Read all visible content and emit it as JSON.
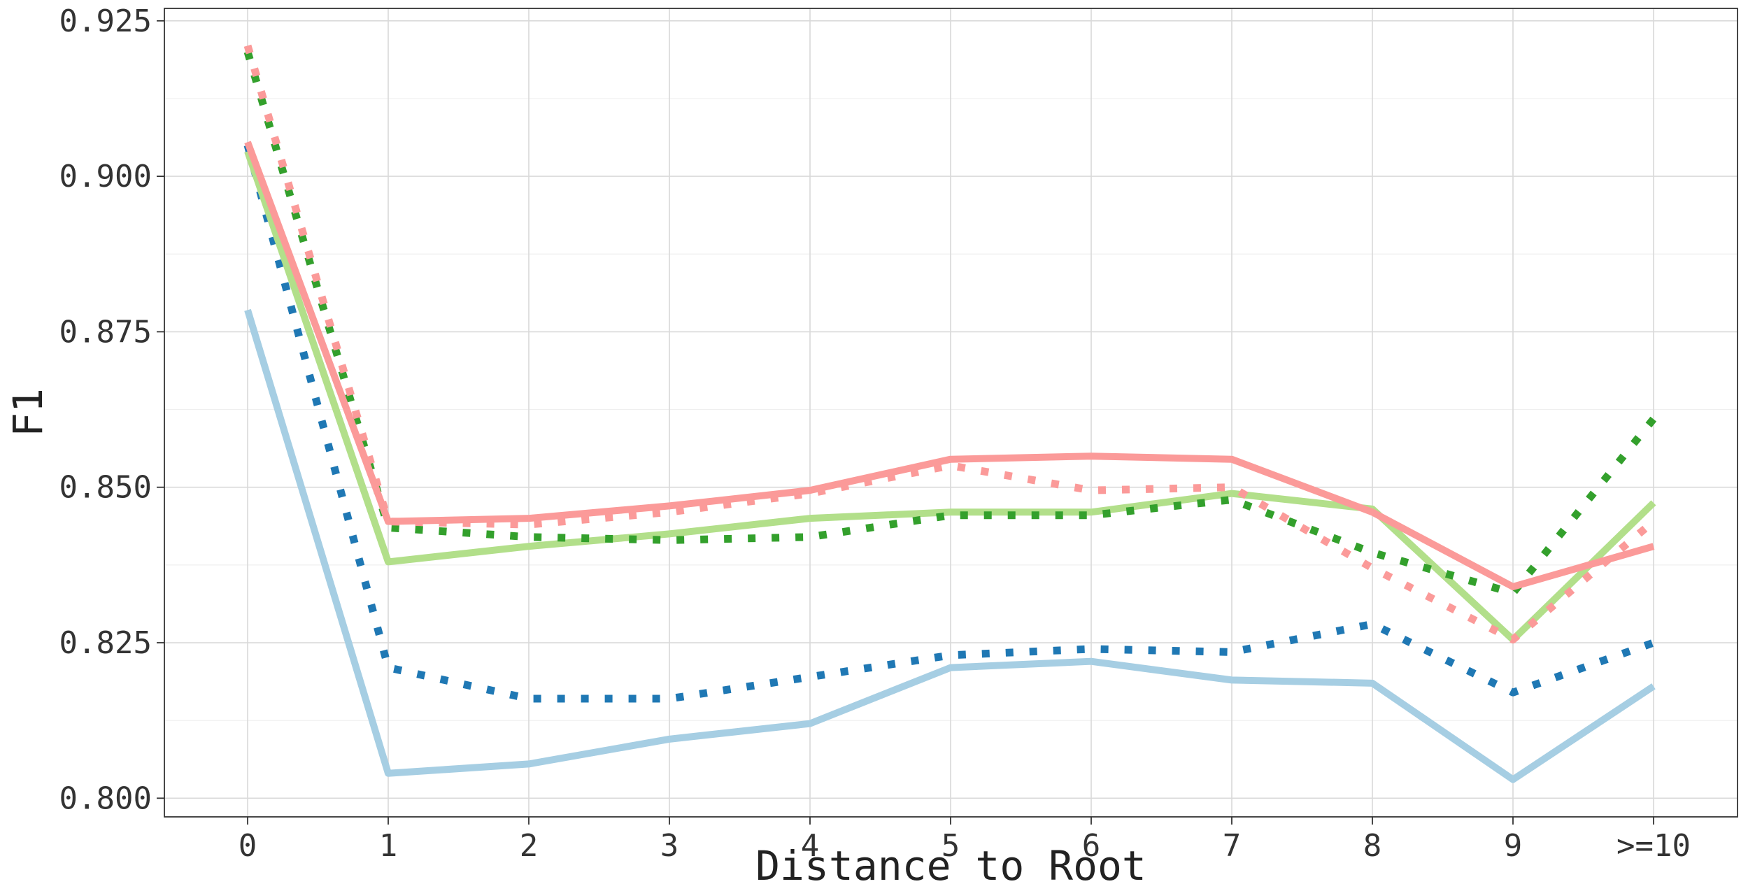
{
  "chart_data": {
    "type": "line",
    "xlabel": "Distance to Root",
    "ylabel": "F1",
    "categories": [
      "0",
      "1",
      "2",
      "3",
      "4",
      "5",
      "6",
      "7",
      "8",
      "9",
      ">=10"
    ],
    "ylim": [
      0.797,
      0.927
    ],
    "yticks": [
      "0.800",
      "0.825",
      "0.850",
      "0.875",
      "0.900",
      "0.925"
    ],
    "ytick_values": [
      0.8,
      0.825,
      0.85,
      0.875,
      0.9,
      0.925
    ],
    "grid": true,
    "legend": "none",
    "series": [
      {
        "color": "#a6cee3",
        "dash": "solid",
        "values": [
          0.8785,
          0.804,
          0.8055,
          0.8095,
          0.812,
          0.821,
          0.822,
          0.819,
          0.8185,
          0.803,
          0.818
        ]
      },
      {
        "color": "#1f78b4",
        "dash": "dotted",
        "values": [
          0.905,
          0.821,
          0.816,
          0.816,
          0.8195,
          0.823,
          0.824,
          0.8235,
          0.828,
          0.817,
          0.825
        ]
      },
      {
        "color": "#b2df8a",
        "dash": "solid",
        "values": [
          0.904,
          0.838,
          0.8405,
          0.8425,
          0.845,
          0.846,
          0.846,
          0.849,
          0.8465,
          0.8255,
          0.8475
        ]
      },
      {
        "color": "#33a02c",
        "dash": "dotted",
        "values": [
          0.92,
          0.8435,
          0.842,
          0.8415,
          0.842,
          0.8455,
          0.8455,
          0.848,
          0.8395,
          0.833,
          0.861
        ]
      },
      {
        "color": "#fb9a99",
        "dash": "solid",
        "values": [
          0.9055,
          0.8445,
          0.845,
          0.847,
          0.8495,
          0.8545,
          0.855,
          0.8545,
          0.846,
          0.834,
          0.8405
        ]
      },
      {
        "color": "#fb9a99",
        "dash": "dotted",
        "values": [
          0.921,
          0.8445,
          0.844,
          0.846,
          0.849,
          0.8535,
          0.8495,
          0.85,
          0.837,
          0.8255,
          0.8445
        ]
      }
    ]
  }
}
